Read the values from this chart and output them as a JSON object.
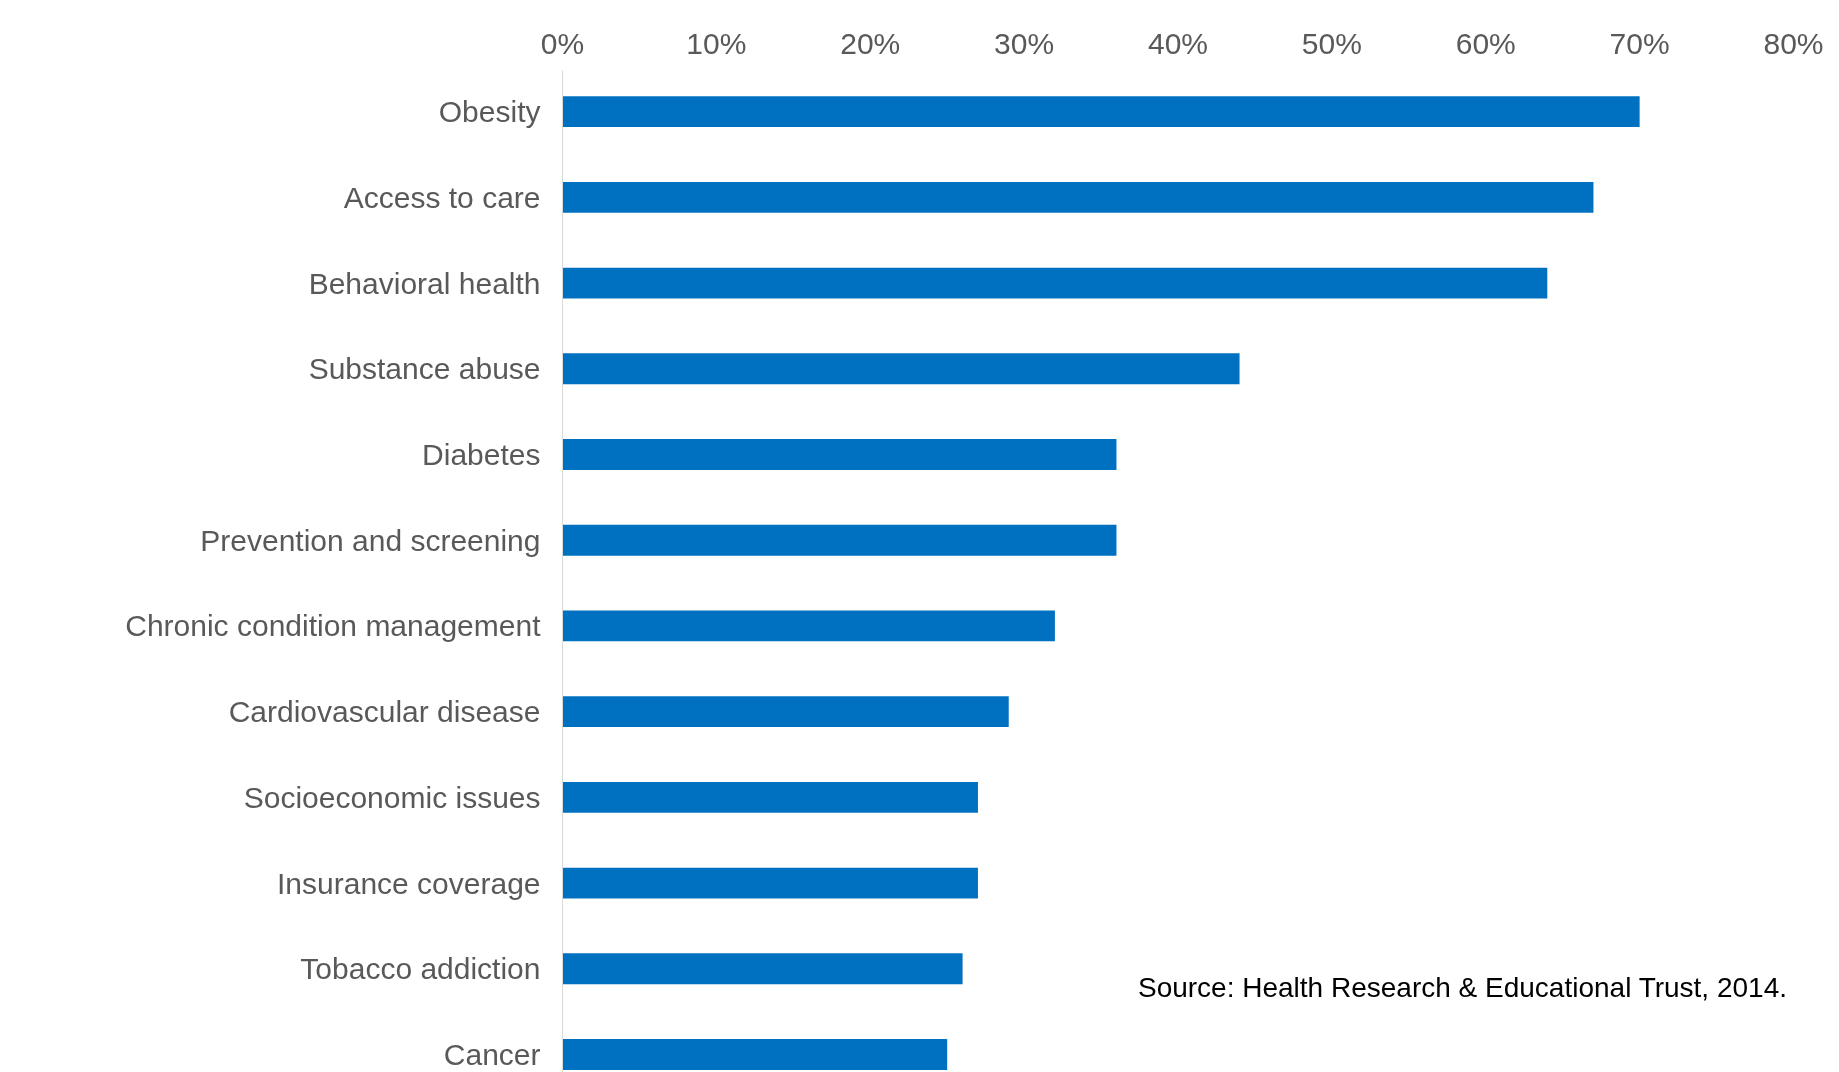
{
  "chart_data": {
    "type": "bar",
    "orientation": "horizontal",
    "categories": [
      "Obesity",
      "Access to care",
      "Behavioral health",
      "Substance abuse",
      "Diabetes",
      "Prevention and screening",
      "Chronic condition management",
      "Cardiovascular disease",
      "Socioeconomic issues",
      "Insurance coverage",
      "Tobacco addiction",
      "Cancer"
    ],
    "values": [
      70,
      67,
      64,
      44,
      36,
      36,
      32,
      29,
      27,
      27,
      26,
      25
    ],
    "color": "#0070c0",
    "xlim": [
      0,
      80
    ],
    "xticks": [
      {
        "value": 0,
        "label": "0%"
      },
      {
        "value": 10,
        "label": "10%"
      },
      {
        "value": 20,
        "label": "20%"
      },
      {
        "value": 30,
        "label": "30%"
      },
      {
        "value": 40,
        "label": "40%"
      },
      {
        "value": 50,
        "label": "50%"
      },
      {
        "value": 60,
        "label": "60%"
      },
      {
        "value": 70,
        "label": "70%"
      },
      {
        "value": 80,
        "label": "80%"
      }
    ],
    "grid": false,
    "annotations": [
      "Source: Health Research & Educational Trust, 2014."
    ]
  }
}
